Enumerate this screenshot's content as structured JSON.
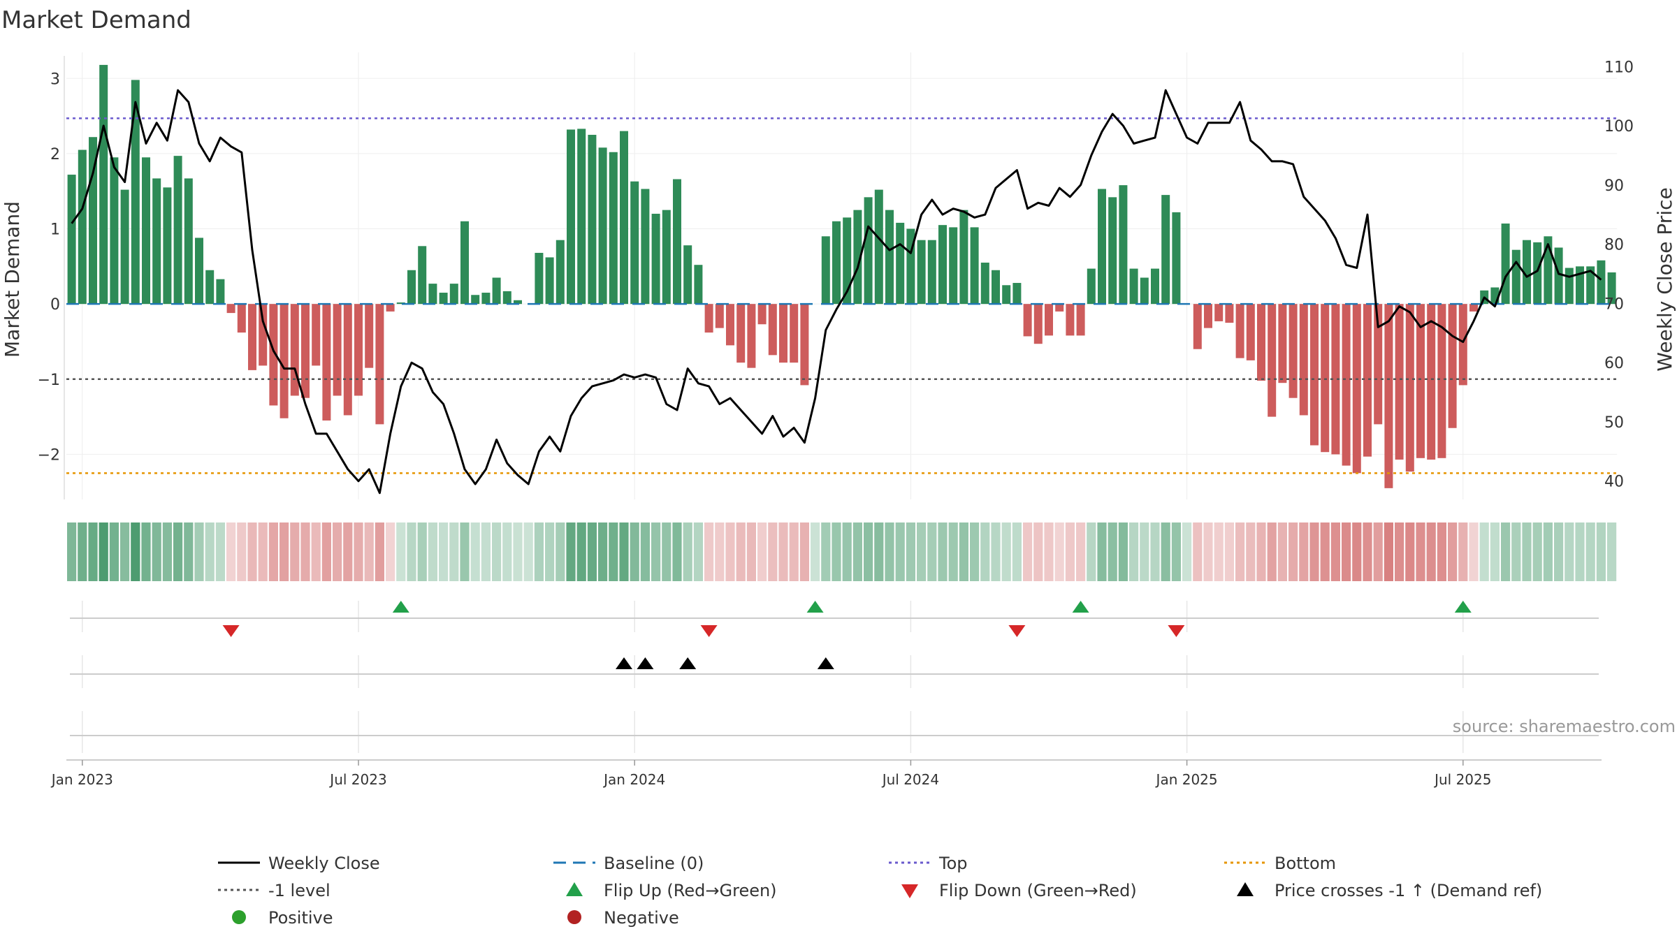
{
  "chart_data": {
    "type": "bar",
    "title": "Market Demand",
    "ylabel_left": "Market Demand",
    "ylabel_right": "Weekly Close Price",
    "source": "source: sharemaestro.com",
    "ylim_left": [
      -2.6,
      3.3
    ],
    "ylim_right": [
      36.9,
      111.8
    ],
    "yticks_left": [
      {
        "v": 3,
        "label": "3"
      },
      {
        "v": 2,
        "label": "2"
      },
      {
        "v": 1,
        "label": "1"
      },
      {
        "v": 0,
        "label": "0"
      },
      {
        "v": -1,
        "label": "−1"
      },
      {
        "v": -2,
        "label": "−2"
      }
    ],
    "yticks_right": [
      {
        "v": 110,
        "label": "110"
      },
      {
        "v": 100,
        "label": "100"
      },
      {
        "v": 90,
        "label": "90"
      },
      {
        "v": 80,
        "label": "80"
      },
      {
        "v": 70,
        "label": "70"
      },
      {
        "v": 60,
        "label": "60"
      },
      {
        "v": 50,
        "label": "50"
      },
      {
        "v": 40,
        "label": "40"
      }
    ],
    "x_ticks": [
      {
        "i": 1.5,
        "label": "Jan 2023"
      },
      {
        "i": 27.5,
        "label": "Jul 2023"
      },
      {
        "i": 53.5,
        "label": "Jan 2024"
      },
      {
        "i": 79.5,
        "label": "Jul 2024"
      },
      {
        "i": 105.5,
        "label": "Jan 2025"
      },
      {
        "i": 131.5,
        "label": "Jul 2025"
      }
    ],
    "reference_lines": {
      "top": 2.47,
      "minus_one": -1.0,
      "bottom": -2.25,
      "baseline": 0
    },
    "demand": [
      1.72,
      2.05,
      2.22,
      3.18,
      1.95,
      1.52,
      2.98,
      1.95,
      1.67,
      1.55,
      1.97,
      1.67,
      0.88,
      0.45,
      0.33,
      -0.12,
      -0.38,
      -0.88,
      -0.82,
      -1.35,
      -1.52,
      -1.22,
      -1.25,
      -0.82,
      -1.55,
      -1.22,
      -1.48,
      -1.22,
      -0.85,
      -1.6,
      -0.1,
      0.02,
      0.45,
      0.77,
      0.27,
      0.15,
      0.27,
      1.1,
      0.12,
      0.15,
      0.35,
      0.17,
      0.05,
      0,
      0.68,
      0.62,
      0.85,
      2.32,
      2.33,
      2.25,
      2.08,
      2.02,
      2.3,
      1.63,
      1.53,
      1.2,
      1.25,
      1.66,
      0.78,
      0.52,
      -0.38,
      -0.32,
      -0.55,
      -0.78,
      -0.85,
      -0.27,
      -0.68,
      -0.78,
      -0.78,
      -1.08,
      0,
      0.9,
      1.1,
      1.15,
      1.25,
      1.42,
      1.52,
      1.25,
      1.08,
      1.0,
      0.85,
      0.85,
      1.05,
      1.02,
      1.25,
      1.02,
      0.55,
      0.45,
      0.25,
      0.28,
      -0.43,
      -0.53,
      -0.42,
      -0.1,
      -0.42,
      -0.42,
      0.47,
      1.53,
      1.42,
      1.58,
      0.47,
      0.35,
      0.47,
      1.45,
      1.22,
      0,
      -0.6,
      -0.32,
      -0.23,
      -0.25,
      -0.72,
      -0.75,
      -1.02,
      -1.5,
      -1.05,
      -1.25,
      -1.48,
      -1.88,
      -1.97,
      -2.0,
      -2.15,
      -2.25,
      -2.03,
      -1.6,
      -2.45,
      -2.07,
      -2.23,
      -2.05,
      -2.07,
      -2.05,
      -1.65,
      -1.08,
      -0.1,
      0.18,
      0.22,
      1.07,
      0.72,
      0.85,
      0.82,
      0.9,
      0.75,
      0.48,
      0.5,
      0.5,
      0.58,
      0.42
    ],
    "weekly_close": [
      83.5,
      86,
      92,
      100,
      93,
      90.5,
      104,
      97,
      100.5,
      97.5,
      106,
      104,
      97,
      94,
      98,
      96.5,
      95.5,
      79,
      67,
      62,
      59,
      59,
      53,
      48,
      48,
      45,
      42,
      40,
      42,
      38,
      48,
      56,
      60,
      59,
      55,
      53,
      48,
      42,
      39.5,
      42,
      47,
      43,
      41,
      39.5,
      45,
      47.5,
      45,
      51,
      54,
      56,
      56.5,
      57,
      58,
      57.5,
      58,
      57.5,
      53,
      52,
      59,
      56.5,
      56,
      53,
      54,
      52,
      50,
      48,
      51,
      47.5,
      49,
      46.5,
      54,
      65.5,
      69,
      72,
      76,
      83,
      81,
      79,
      80,
      78.5,
      85,
      87.5,
      85,
      86,
      85.5,
      84.5,
      85,
      89.5,
      91,
      92.5,
      86,
      87,
      86.5,
      89.5,
      88,
      90,
      95,
      99,
      102,
      100,
      97,
      97.5,
      98,
      106,
      102,
      98,
      97,
      100.5,
      100.5,
      100.5,
      104,
      97.5,
      96,
      94,
      94,
      93.5,
      88,
      86,
      84,
      81,
      76.5,
      76,
      85,
      66,
      67,
      69.5,
      68.5,
      66,
      67,
      66,
      64.5,
      63.5,
      67,
      71,
      69.5,
      74.5,
      77,
      74.5,
      75.5,
      80,
      75,
      74.5,
      75,
      75.5,
      74
    ],
    "flip_up_idx": [
      31,
      70,
      95,
      131
    ],
    "flip_down_idx": [
      15,
      60,
      89,
      104
    ],
    "price_cross_idx": [
      52,
      54,
      58,
      71
    ],
    "legend": {
      "weekly_close": "Weekly Close",
      "baseline": "Baseline (0)",
      "top": "Top",
      "bottom": "Bottom",
      "minus_one": "-1 level",
      "flip_up": "Flip Up (Red→Green)",
      "flip_down": "Flip Down (Green→Red)",
      "price_cross": "Price crosses -1 ↑ (Demand ref)",
      "positive": "Positive",
      "negative": "Negative"
    },
    "colors": {
      "positive_bar": "#2e8b57",
      "negative_bar": "#cd5c5c",
      "price_line": "#000000",
      "baseline": "#1f77b4",
      "top": "#6a5acd",
      "minus_one": "#555555",
      "bottom": "#e69500",
      "flip_up": "#22a04a",
      "flip_down": "#d62728",
      "price_cross": "#000000",
      "positive_dot": "#2ca02c",
      "negative_dot": "#b22222"
    }
  }
}
